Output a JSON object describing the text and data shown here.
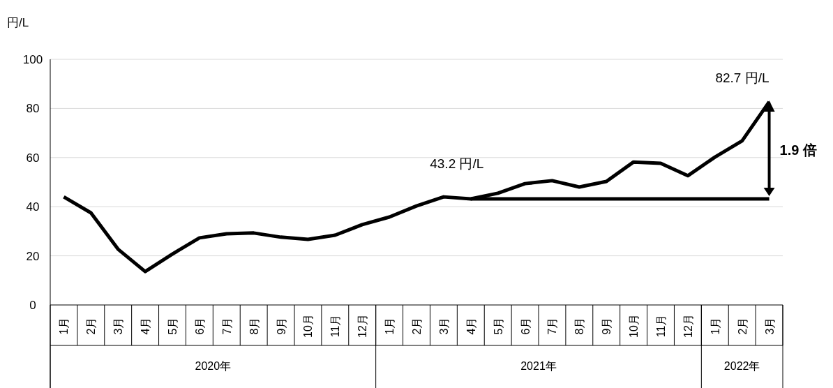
{
  "chart_data": {
    "type": "line",
    "ylabel": "円/L",
    "categories": [
      "1月",
      "2月",
      "3月",
      "4月",
      "5月",
      "6月",
      "7月",
      "8月",
      "9月",
      "10月",
      "11月",
      "12月",
      "1月",
      "2月",
      "3月",
      "4月",
      "5月",
      "6月",
      "7月",
      "8月",
      "9月",
      "10月",
      "11月",
      "12月",
      "1月",
      "2月",
      "3月"
    ],
    "series": [
      {
        "color": "#000000",
        "values": [
          44.0,
          37.5,
          22.7,
          13.6,
          20.7,
          27.3,
          29.0,
          29.3,
          27.6,
          26.7,
          28.4,
          32.7,
          35.8,
          40.3,
          44.0,
          43.2,
          45.5,
          49.4,
          50.6,
          48.0,
          50.3,
          58.2,
          57.7,
          52.6,
          60.2,
          66.8,
          82.7
        ]
      },
      {
        "color": "#000000",
        "values": [
          null,
          null,
          null,
          null,
          null,
          null,
          null,
          null,
          null,
          null,
          null,
          null,
          null,
          null,
          null,
          43.2,
          43.2,
          43.2,
          43.2,
          43.2,
          43.2,
          43.2,
          43.2,
          43.2,
          43.2,
          43.2,
          43.2
        ]
      }
    ],
    "ylim": [
      0,
      100
    ],
    "yticks": [
      0,
      20,
      40,
      60,
      80,
      100
    ],
    "grid": "y",
    "marker": "none",
    "line_style": "solid",
    "annotations": [
      {
        "text": "43.2 円/L",
        "y": 43.2
      },
      "82.7 円/L",
      "1.9 倍",
      "2020年",
      "2021年",
      "2022年"
    ]
  }
}
